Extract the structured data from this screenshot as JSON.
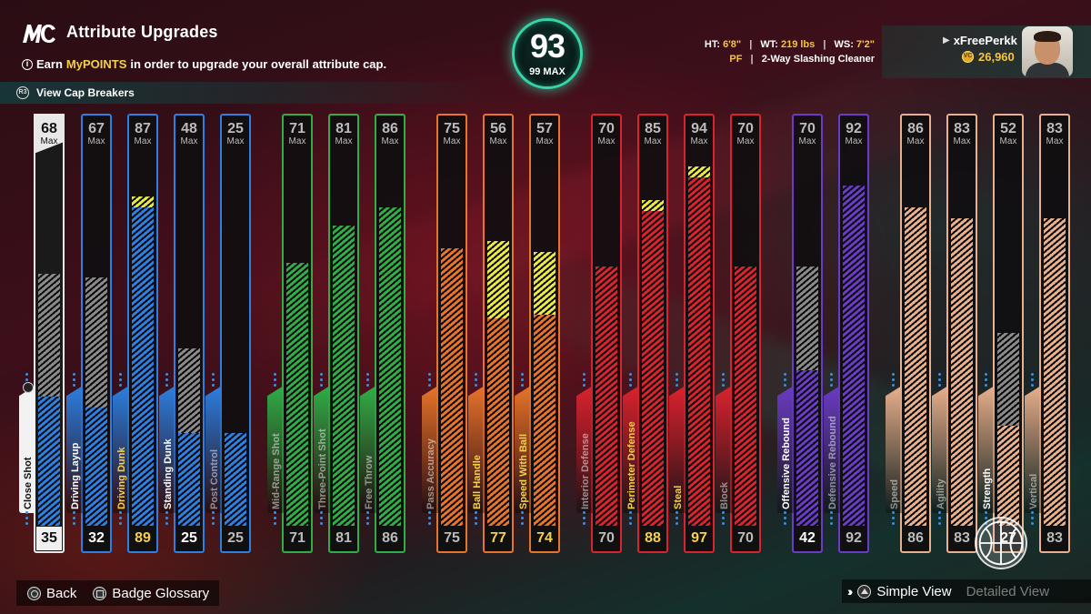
{
  "header": {
    "title": "Attribute Upgrades",
    "earn_prefix": "Earn",
    "earn_highlight": "MyPOINTS",
    "earn_suffix": "in order to upgrade your overall attribute cap.",
    "cap_breakers": "View Cap Breakers"
  },
  "overall": {
    "value": "93",
    "max": "99 MAX"
  },
  "player": {
    "ht_label": "HT:",
    "ht": "6'8\"",
    "wt_label": "WT:",
    "wt": "219 lbs",
    "ws_label": "WS:",
    "ws": "7'2\"",
    "position": "PF",
    "archetype": "2-Way Slashing Cleaner",
    "username": "xFreePerkk",
    "vc": "26,960"
  },
  "max_label": "Max",
  "attributes": [
    {
      "name": "Close Shot",
      "max": 68,
      "current": 35,
      "base": 35,
      "boosted": 35,
      "potential": 68,
      "group": "sel",
      "color": "#ffffff",
      "text": "white",
      "label_style": "on"
    },
    {
      "name": "Driving Layup",
      "max": 67,
      "current": 32,
      "base": 32,
      "boosted": 32,
      "potential": 67,
      "group": "finishing",
      "color": "#2d7fe0",
      "text": "white",
      "label_style": "on"
    },
    {
      "name": "Driving Dunk",
      "max": 87,
      "current": 89,
      "base": 86,
      "boosted": 89,
      "potential": 89,
      "group": "finishing",
      "color": "#2d7fe0",
      "text": "boost",
      "label_style": "hl"
    },
    {
      "name": "Standing Dunk",
      "max": 48,
      "current": 25,
      "base": 25,
      "boosted": 25,
      "potential": 48,
      "group": "finishing",
      "color": "#2d7fe0",
      "text": "white",
      "label_style": "on"
    },
    {
      "name": "Post Control",
      "max": 25,
      "current": 25,
      "base": 25,
      "boosted": 25,
      "potential": 25,
      "group": "finishing",
      "color": "#2d7fe0",
      "text": "dim",
      "label_style": "dim"
    },
    {
      "name": "Mid-Range Shot",
      "max": 71,
      "current": 71,
      "base": 71,
      "boosted": 71,
      "potential": 71,
      "group": "shooting",
      "color": "#2fae47",
      "text": "dim",
      "label_style": "dim"
    },
    {
      "name": "Three-Point Shot",
      "max": 81,
      "current": 81,
      "base": 81,
      "boosted": 81,
      "potential": 81,
      "group": "shooting",
      "color": "#2fae47",
      "text": "dim",
      "label_style": "dim"
    },
    {
      "name": "Free Throw",
      "max": 86,
      "current": 86,
      "base": 86,
      "boosted": 86,
      "potential": 86,
      "group": "shooting",
      "color": "#2fae47",
      "text": "dim",
      "label_style": "dim"
    },
    {
      "name": "Pass Accuracy",
      "max": 75,
      "current": 75,
      "base": 75,
      "boosted": 75,
      "potential": 75,
      "group": "playmaking",
      "color": "#e6742a",
      "text": "dim",
      "label_style": "dim"
    },
    {
      "name": "Ball Handle",
      "max": 56,
      "current": 77,
      "base": 56,
      "boosted": 77,
      "potential": 77,
      "group": "playmaking",
      "color": "#e6742a",
      "text": "boost",
      "label_style": "hl"
    },
    {
      "name": "Speed With Ball",
      "max": 57,
      "current": 74,
      "base": 57,
      "boosted": 74,
      "potential": 74,
      "group": "playmaking",
      "color": "#e6742a",
      "text": "boost",
      "label_style": "hl"
    },
    {
      "name": "Interior Defense",
      "max": 70,
      "current": 70,
      "base": 70,
      "boosted": 70,
      "potential": 70,
      "group": "defense",
      "color": "#d9232f",
      "text": "dim",
      "label_style": "dim"
    },
    {
      "name": "Perimeter Defense",
      "max": 85,
      "current": 88,
      "base": 85,
      "boosted": 88,
      "potential": 88,
      "group": "defense",
      "color": "#d9232f",
      "text": "boost",
      "label_style": "hl"
    },
    {
      "name": "Steal",
      "max": 94,
      "current": 97,
      "base": 94,
      "boosted": 97,
      "potential": 97,
      "group": "defense",
      "color": "#d9232f",
      "text": "boost",
      "label_style": "hl"
    },
    {
      "name": "Block",
      "max": 70,
      "current": 70,
      "base": 70,
      "boosted": 70,
      "potential": 70,
      "group": "defense",
      "color": "#d9232f",
      "text": "dim",
      "label_style": "dim"
    },
    {
      "name": "Offensive Rebound",
      "max": 70,
      "current": 42,
      "base": 42,
      "boosted": 42,
      "potential": 70,
      "group": "rebounding",
      "color": "#6a3bc4",
      "text": "white",
      "label_style": "on"
    },
    {
      "name": "Defensive Rebound",
      "max": 92,
      "current": 92,
      "base": 92,
      "boosted": 92,
      "potential": 92,
      "group": "rebounding",
      "color": "#6a3bc4",
      "text": "dim",
      "label_style": "dim"
    },
    {
      "name": "Speed",
      "max": 86,
      "current": 86,
      "base": 86,
      "boosted": 86,
      "potential": 86,
      "group": "physical",
      "color": "#e8b08c",
      "text": "dim",
      "label_style": "dim"
    },
    {
      "name": "Agility",
      "max": 83,
      "current": 83,
      "base": 83,
      "boosted": 83,
      "potential": 83,
      "group": "physical",
      "color": "#e8b08c",
      "text": "dim",
      "label_style": "dim"
    },
    {
      "name": "Strength",
      "max": 52,
      "current": 27,
      "base": 27,
      "boosted": 27,
      "potential": 52,
      "group": "physical",
      "color": "#e8b08c",
      "text": "white",
      "label_style": "on"
    },
    {
      "name": "Vertical",
      "max": 83,
      "current": 83,
      "base": 83,
      "boosted": 83,
      "potential": 83,
      "group": "physical",
      "color": "#e8b08c",
      "text": "dim",
      "label_style": "dim"
    }
  ],
  "footer": {
    "back": "Back",
    "glossary": "Badge Glossary",
    "simple_view": "Simple View",
    "detailed_view": "Detailed View"
  }
}
